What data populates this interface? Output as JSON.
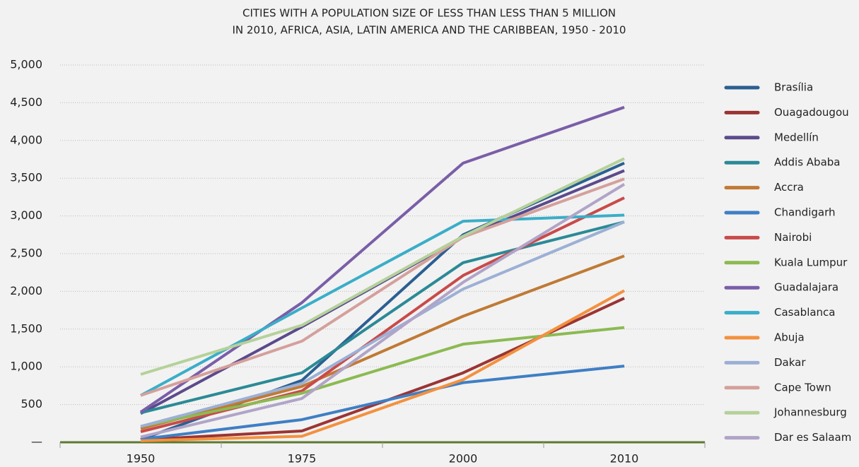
{
  "chart_data": {
    "type": "line",
    "title": [
      "CITIES WITH A POPULATION SIZE OF LESS THAN LESS THAN 5 MILLION",
      "IN 2010, AFRICA, ASIA, LATIN AMERICA AND THE CARIBBEAN, 1950 - 2010"
    ],
    "categories": [
      "1950",
      "1975",
      "2000",
      "2010"
    ],
    "ylim": [
      0,
      5000
    ],
    "yticks": [
      {
        "value": 0,
        "label": "—"
      },
      {
        "value": 500,
        "label": "500"
      },
      {
        "value": 1000,
        "label": "1,000"
      },
      {
        "value": 1500,
        "label": "1,500"
      },
      {
        "value": 2000,
        "label": "2,000"
      },
      {
        "value": 2500,
        "label": "2,500"
      },
      {
        "value": 3000,
        "label": "3,000"
      },
      {
        "value": 3500,
        "label": "3,500"
      },
      {
        "value": 4000,
        "label": "4,000"
      },
      {
        "value": 4500,
        "label": "4,500"
      },
      {
        "value": 5000,
        "label": "5,000"
      }
    ],
    "grid": true,
    "legend": "right",
    "series": [
      {
        "name": "Brasília",
        "color": "#2b5f91",
        "values": [
          36,
          820,
          2750,
          3700
        ]
      },
      {
        "name": "Ouagadougou",
        "color": "#9b3434",
        "values": [
          33,
          150,
          920,
          1910
        ]
      },
      {
        "name": "Medellín",
        "color": "#5b4a8b",
        "values": [
          380,
          1530,
          2720,
          3600
        ]
      },
      {
        "name": "Addis Ababa",
        "color": "#2b8a96",
        "values": [
          390,
          920,
          2380,
          2920
        ]
      },
      {
        "name": "Accra",
        "color": "#c07a35",
        "values": [
          180,
          740,
          1670,
          2470
        ]
      },
      {
        "name": "Chandigarh",
        "color": "#3f7fc4",
        "values": [
          40,
          300,
          790,
          1010
        ]
      },
      {
        "name": "Nairobi",
        "color": "#c94a4a",
        "values": [
          140,
          680,
          2210,
          3240
        ]
      },
      {
        "name": "Kuala Lumpur",
        "color": "#8cba52",
        "values": [
          210,
          650,
          1300,
          1520
        ]
      },
      {
        "name": "Guadalajara",
        "color": "#7a5ea8",
        "values": [
          400,
          1850,
          3700,
          4440
        ]
      },
      {
        "name": "Casablanca",
        "color": "#3aaec8",
        "values": [
          620,
          1780,
          2930,
          3010
        ]
      },
      {
        "name": "Abuja",
        "color": "#f3913f",
        "values": [
          20,
          80,
          830,
          2010
        ]
      },
      {
        "name": "Dakar",
        "color": "#9cb0d4",
        "values": [
          210,
          780,
          2030,
          2920
        ]
      },
      {
        "name": "Cape Town",
        "color": "#d4a09c",
        "values": [
          620,
          1340,
          2720,
          3490
        ]
      },
      {
        "name": "Johannesburg",
        "color": "#b5d19a",
        "values": [
          900,
          1550,
          2730,
          3760
        ]
      },
      {
        "name": "Dar es Salaam",
        "color": "#b0a4c8",
        "values": [
          70,
          580,
          2120,
          3420
        ]
      }
    ]
  }
}
